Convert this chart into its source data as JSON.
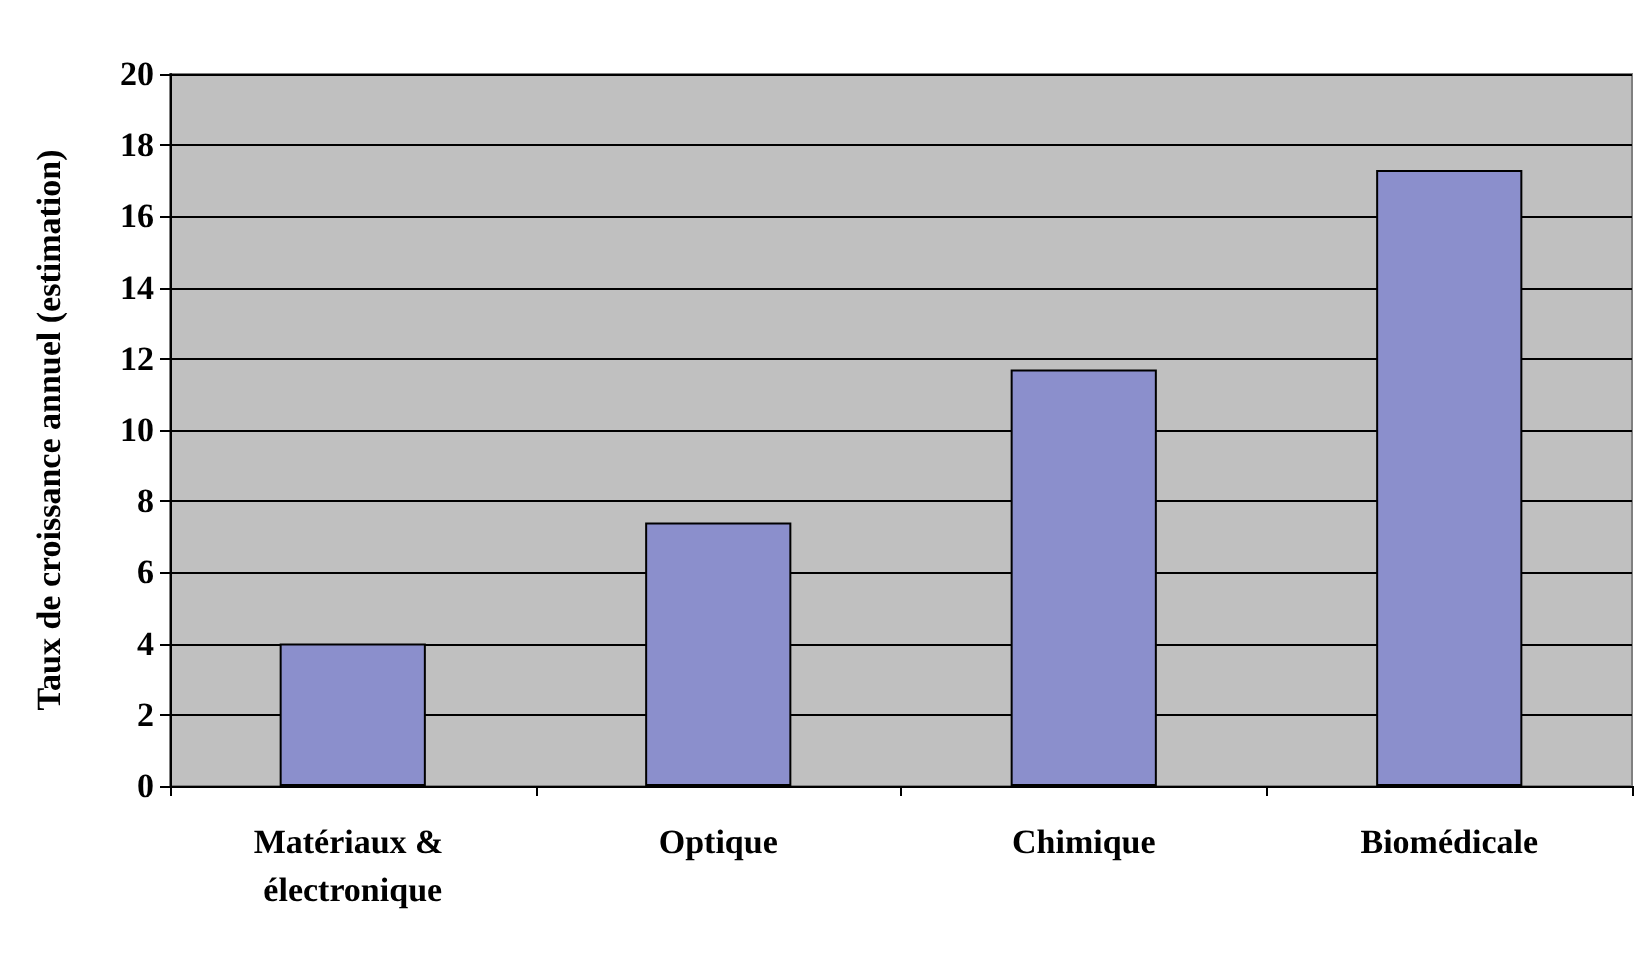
{
  "chart_data": {
    "type": "bar",
    "ylabel": "Taux de croissance annuel (estimation)",
    "categories": [
      "Matériaux & électronique",
      "Optique",
      "Chimique",
      "Biomédicale"
    ],
    "values": [
      4.0,
      7.4,
      11.7,
      17.3
    ],
    "color": "#8b8fcc",
    "ylim": [
      0,
      20
    ],
    "yticks": [
      0,
      2,
      4,
      6,
      8,
      10,
      12,
      14,
      16,
      18,
      20
    ],
    "grid": "y"
  }
}
